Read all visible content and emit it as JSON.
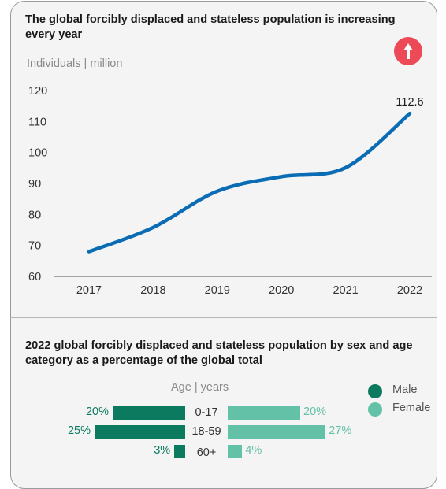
{
  "line_chart": {
    "title": "The global forcibly displaced and stateless population is increasing every year",
    "unit_label": "Individuals | million",
    "badge_icon": "arrow-up-icon",
    "accent_color": "#ec4a57"
  },
  "bar_chart": {
    "title": "2022 global forcibly displaced and stateless population by sex and age category as a percentage of the global total",
    "age_label": "Age | years",
    "legend": [
      {
        "label": "Male",
        "color": "#0b7a5f"
      },
      {
        "label": "Female",
        "color": "#63c1a7"
      }
    ]
  },
  "chart_data": [
    {
      "type": "line",
      "title": "The global forcibly displaced and stateless population is increasing every year",
      "ylabel": "Individuals | million",
      "x": [
        "2017",
        "2018",
        "2019",
        "2020",
        "2021",
        "2022"
      ],
      "series": [
        {
          "values": [
            68,
            75.8,
            87.5,
            92.2,
            95.1,
            112.6
          ],
          "color": "#0a6cb5"
        }
      ],
      "data_labels": [
        {
          "x": "2022",
          "text": "112.6"
        }
      ],
      "yticks": [
        60,
        70,
        80,
        90,
        100,
        110,
        120
      ],
      "ylim": [
        60,
        120
      ],
      "grid": false
    },
    {
      "type": "bar",
      "title": "2022 global forcibly displaced and stateless population by sex and age category as a percentage of the global total",
      "categories": [
        "0-17",
        "18-59",
        "60+"
      ],
      "category_axis_label": "Age | years",
      "series": [
        {
          "name": "Male",
          "values": [
            20,
            25,
            3
          ],
          "labels": [
            "20%",
            "25%",
            "3%"
          ],
          "color": "#0b7a5f"
        },
        {
          "name": "Female",
          "values": [
            20,
            27,
            4
          ],
          "labels": [
            "20%",
            "27%",
            "4%"
          ],
          "color": "#63c1a7"
        }
      ],
      "legend_position": "top-right"
    }
  ]
}
